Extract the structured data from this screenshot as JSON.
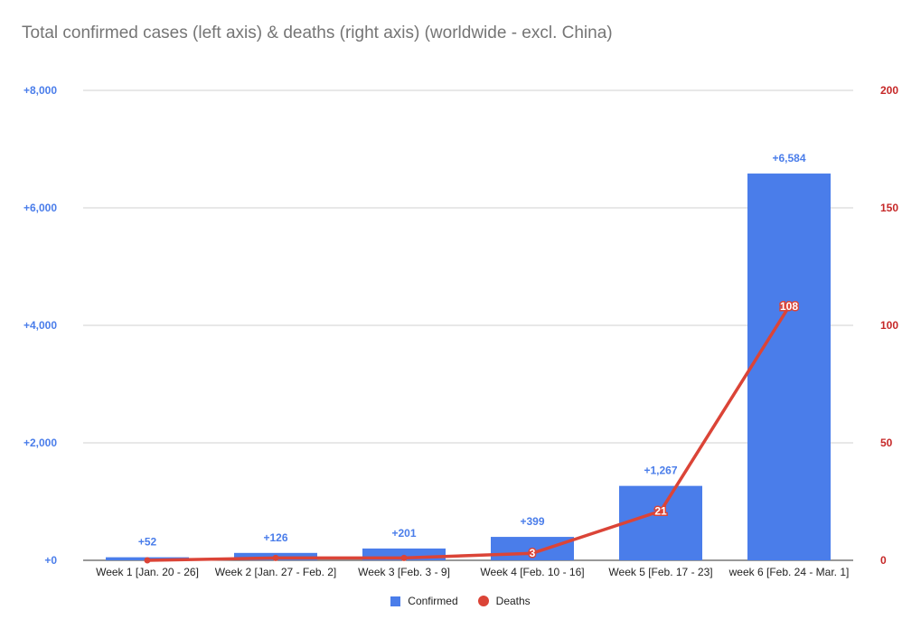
{
  "chart_data": {
    "type": "bar",
    "title": "Total confirmed cases (left axis) & deaths (right axis) (worldwide - excl. China)",
    "categories": [
      "Week 1 [Jan. 20 - 26]",
      "Week 2 [Jan. 27 - Feb. 2]",
      "Week 3 [Feb. 3 - 9]",
      "Week 4 [Feb. 10 - 16]",
      "Week 5 [Feb. 17 - 23]",
      "week 6 [Feb. 24 - Mar. 1]"
    ],
    "series": [
      {
        "name": "Confirmed",
        "type": "bar",
        "axis": "left",
        "color": "#4a7dea",
        "values": [
          52,
          126,
          201,
          399,
          1267,
          6584
        ],
        "labels": [
          "+52",
          "+126",
          "+201",
          "+399",
          "+1,267",
          "+6,584"
        ]
      },
      {
        "name": "Deaths",
        "type": "line",
        "axis": "right",
        "color": "#db4437",
        "values": [
          0,
          1,
          1,
          3,
          21,
          108
        ],
        "labels": [
          "",
          "",
          "",
          "3",
          "21",
          "108"
        ]
      }
    ],
    "y_left": {
      "range": [
        0,
        8000
      ],
      "ticks": [
        0,
        2000,
        4000,
        6000,
        8000
      ],
      "tick_labels": [
        "+0",
        "+2,000",
        "+4,000",
        "+6,000",
        "+8,000"
      ],
      "color": "#4a7dea"
    },
    "y_right": {
      "range": [
        0,
        200
      ],
      "ticks": [
        0,
        50,
        100,
        150,
        200
      ],
      "tick_labels": [
        "0",
        "50",
        "100",
        "150",
        "200"
      ],
      "color": "#c62828"
    },
    "grid": true,
    "legend_position": "bottom"
  }
}
